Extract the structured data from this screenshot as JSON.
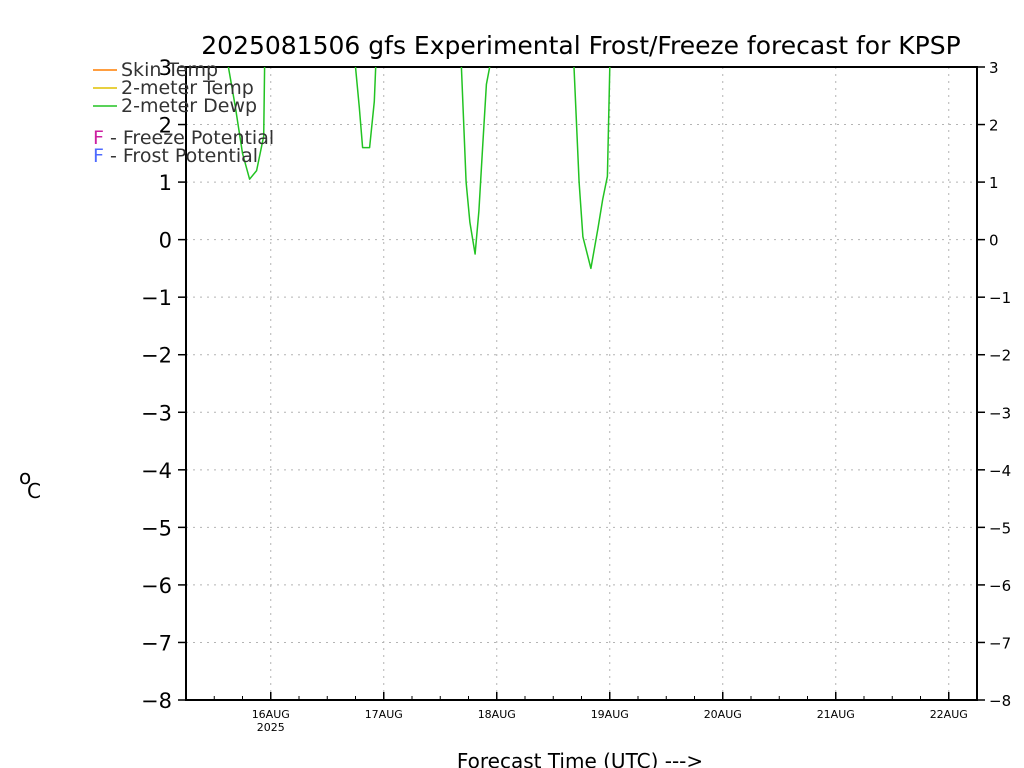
{
  "chart_data": {
    "type": "line",
    "title": "2025081506 gfs Experimental Frost/Freeze forecast for KPSP",
    "xlabel": "Forecast Time (UTC) --->",
    "ylabel_super": "o",
    "ylabel": "C",
    "ylim": [
      -8,
      3
    ],
    "yticks": [
      3,
      2,
      1,
      0,
      -1,
      -2,
      -3,
      -4,
      -5,
      -6,
      -7,
      -8
    ],
    "yticklabels": [
      "3",
      "2",
      "1",
      "0",
      "−1",
      "−2",
      "−3",
      "−4",
      "−5",
      "−6",
      "−7",
      "−8"
    ],
    "xlim_hours": [
      6,
      174
    ],
    "xticks": [
      {
        "label": "16AUG",
        "sub": "2025",
        "hour": 24
      },
      {
        "label": "17AUG",
        "sub": "",
        "hour": 48
      },
      {
        "label": "18AUG",
        "sub": "",
        "hour": 72
      },
      {
        "label": "19AUG",
        "sub": "",
        "hour": 96
      },
      {
        "label": "20AUG",
        "sub": "",
        "hour": 120
      },
      {
        "label": "21AUG",
        "sub": "",
        "hour": 144
      },
      {
        "label": "22AUG",
        "sub": "",
        "hour": 168
      }
    ],
    "grid": true,
    "legend": {
      "position": "top-left",
      "series_entries": [
        {
          "label": "Skin Temp",
          "color": "#ff7f00"
        },
        {
          "label": "2-meter Temp",
          "color": "#e0c000"
        },
        {
          "label": "2-meter Dewp",
          "color": "#22c322"
        }
      ],
      "marker_entries": [
        {
          "letter": "F",
          "text": " - Freeze Potential",
          "color": "#cc1fa0"
        },
        {
          "letter": "F",
          "text": " - Frost Potential",
          "color": "#4d6aff"
        }
      ]
    },
    "series": [
      {
        "name": "Skin Temp",
        "color": "#ff7f00",
        "points": []
      },
      {
        "name": "2-meter Temp",
        "color": "#e0c000",
        "points": []
      },
      {
        "name": "2-meter Dewp",
        "color": "#22c322",
        "segments": [
          [
            [
              15,
              3
            ],
            [
              16.5,
              2.3
            ],
            [
              18,
              1.5
            ],
            [
              19.5,
              1.05
            ],
            [
              21,
              1.2
            ],
            [
              22.5,
              1.8
            ],
            [
              22.7,
              3
            ]
          ],
          [
            [
              42,
              3
            ],
            [
              42.8,
              2.3
            ],
            [
              43.5,
              1.6
            ],
            [
              45,
              1.6
            ],
            [
              46,
              2.4
            ],
            [
              46.3,
              3
            ]
          ],
          [
            [
              64.5,
              3
            ],
            [
              65.5,
              1.0
            ],
            [
              66.3,
              0.3
            ],
            [
              67.4,
              -0.25
            ],
            [
              68.2,
              0.5
            ],
            [
              69,
              1.6
            ],
            [
              69.8,
              2.7
            ],
            [
              70.5,
              3
            ]
          ],
          [
            [
              88.4,
              3
            ],
            [
              89.5,
              1.0
            ],
            [
              90.3,
              0.05
            ],
            [
              92,
              -0.5
            ],
            [
              93.5,
              0.2
            ],
            [
              94.5,
              0.7
            ],
            [
              95.5,
              1.1
            ],
            [
              96,
              3
            ]
          ]
        ]
      }
    ]
  }
}
